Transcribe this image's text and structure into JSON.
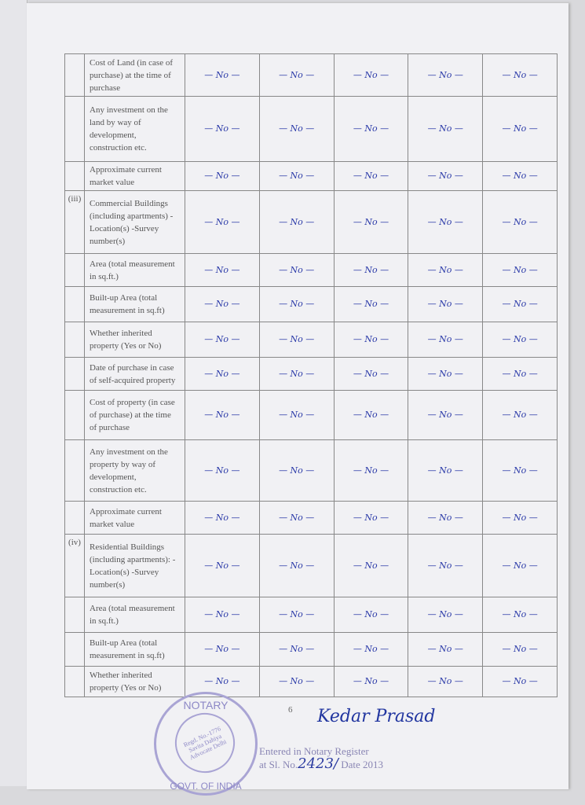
{
  "table": {
    "rows": [
      {
        "index": "",
        "label": "Cost of Land (in case of purchase) at the time of purchase",
        "values": [
          "— No —",
          "— No —",
          "— No —",
          "— No —",
          "— No —"
        ]
      },
      {
        "index": "",
        "label": "Any investment on the land by way of development, construction etc.",
        "values": [
          "— No —",
          "— No —",
          "— No —",
          "— No —",
          "— No —"
        ]
      },
      {
        "index": "",
        "label": "Approximate current market value",
        "values": [
          "— No —",
          "— No —",
          "— No —",
          "— No —",
          "— No —"
        ]
      },
      {
        "index": "(iii)",
        "label": "Commercial Buildings (including apartments) -Location(s) -Survey number(s)",
        "values": [
          "— No —",
          "— No —",
          "— No —",
          "— No —",
          "— No —"
        ]
      },
      {
        "index": "",
        "label": "Area (total measurement in sq.ft.)",
        "values": [
          "— No —",
          "— No —",
          "— No —",
          "— No —",
          "— No —"
        ]
      },
      {
        "index": "",
        "label": "Built-up Area (total measurement in sq.ft)",
        "values": [
          "— No —",
          "— No —",
          "— No —",
          "— No —",
          "— No —"
        ]
      },
      {
        "index": "",
        "label": "Whether inherited property (Yes or No)",
        "values": [
          "— No —",
          "— No —",
          "— No —",
          "— No —",
          "— No —"
        ]
      },
      {
        "index": "",
        "label": "Date of purchase in case of self-acquired property",
        "values": [
          "— No —",
          "— No —",
          "— No —",
          "— No —",
          "— No —"
        ]
      },
      {
        "index": "",
        "label": "Cost of property (in case of purchase) at the time of purchase",
        "values": [
          "— No —",
          "— No —",
          "— No —",
          "— No —",
          "— No —"
        ]
      },
      {
        "index": "",
        "label": "Any investment on the property by way of development, construction etc.",
        "values": [
          "— No —",
          "— No —",
          "— No —",
          "— No —",
          "— No —"
        ]
      },
      {
        "index": "",
        "label": "Approximate current market value",
        "values": [
          "— No —",
          "— No —",
          "— No —",
          "— No —",
          "— No —"
        ]
      },
      {
        "index": "(iv)",
        "label": "Residential Buildings (including apartments): -Location(s) -Survey number(s)",
        "values": [
          "— No —",
          "— No —",
          "— No —",
          "— No —",
          "— No —"
        ]
      },
      {
        "index": "",
        "label": "Area (total measurement in sq.ft.)",
        "values": [
          "— No —",
          "— No —",
          "— No —",
          "— No —",
          "— No —"
        ]
      },
      {
        "index": "",
        "label": "Built-up Area (total measurement in sq.ft)",
        "values": [
          "— No —",
          "— No —",
          "— No —",
          "— No —",
          "— No —"
        ]
      },
      {
        "index": "",
        "label": "Whether inherited property (Yes or No)",
        "values": [
          "— No —",
          "— No —",
          "— No —",
          "— No —",
          "— No —"
        ]
      }
    ],
    "row_heights_hint": []
  },
  "footer": {
    "page_number": "6",
    "signature": "Kedar Prasad",
    "stamp": {
      "top": "NOTARY",
      "bottom": "GOVT. OF INDIA",
      "inner": "Regd. No.-1776 Savita Dahiya Advocate Delhi"
    },
    "register_line1": "Entered in Notary Register",
    "register_line2_prefix": "at Sl. No.",
    "register_number": "2423/",
    "register_line2_suffix": "Date 2013"
  },
  "colors": {
    "ink": "#2b3aa8",
    "stamp": "#a9a4d4"
  }
}
